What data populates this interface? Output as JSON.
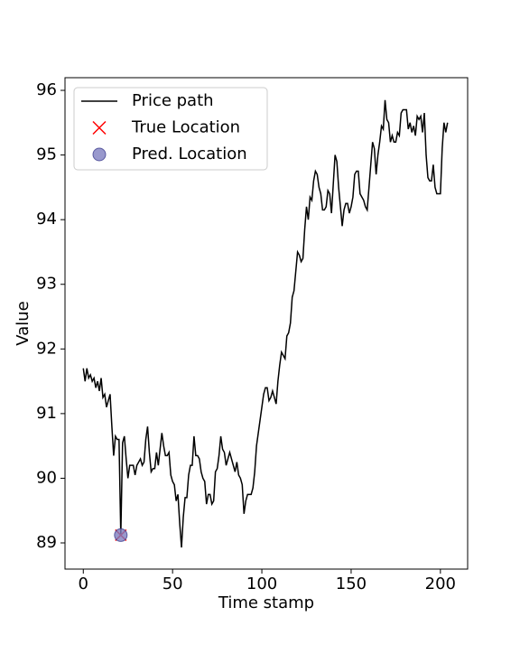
{
  "chart_data": {
    "type": "line",
    "xlabel": "Time stamp",
    "ylabel": "Value",
    "xlim": [
      -10.25,
      215.25
    ],
    "ylim": [
      88.595,
      96.196
    ],
    "xticks": [
      0,
      50,
      100,
      150,
      200
    ],
    "yticks": [
      89,
      90,
      91,
      92,
      93,
      94,
      95,
      96
    ],
    "legend": "upper left",
    "series": [
      {
        "name": "Price path",
        "color": "#000000",
        "marker": "line",
        "x": [
          0,
          1,
          2,
          3,
          4,
          5,
          6,
          7,
          8,
          9,
          10,
          11,
          12,
          13,
          14,
          15,
          16,
          17,
          18,
          19,
          20,
          21,
          22,
          23,
          24,
          25,
          26,
          27,
          28,
          29,
          30,
          31,
          32,
          33,
          34,
          35,
          36,
          37,
          38,
          39,
          40,
          41,
          42,
          43,
          44,
          45,
          46,
          47,
          48,
          49,
          50,
          51,
          52,
          53,
          54,
          55,
          56,
          57,
          58,
          59,
          60,
          61,
          62,
          63,
          64,
          65,
          66,
          67,
          68,
          69,
          70,
          71,
          72,
          73,
          74,
          75,
          76,
          77,
          78,
          79,
          80,
          81,
          82,
          83,
          84,
          85,
          86,
          87,
          88,
          89,
          90,
          91,
          92,
          93,
          94,
          95,
          96,
          97,
          98,
          99,
          100,
          101,
          102,
          103,
          104,
          105,
          106,
          107,
          108,
          109,
          110,
          111,
          112,
          113,
          114,
          115,
          116,
          117,
          118,
          119,
          120,
          121,
          122,
          123,
          124,
          125,
          126,
          127,
          128,
          129,
          130,
          131,
          132,
          133,
          134,
          135,
          136,
          137,
          138,
          139,
          140,
          141,
          142,
          143,
          144,
          145,
          146,
          147,
          148,
          149,
          150,
          151,
          152,
          153,
          154,
          155,
          156,
          157,
          158,
          159,
          160,
          161,
          162,
          163,
          164,
          165,
          166,
          167,
          168,
          169,
          170,
          171,
          172,
          173,
          174,
          175,
          176,
          177,
          178,
          179,
          180,
          181,
          182,
          183,
          184,
          185,
          186,
          187,
          188,
          189,
          190,
          191,
          192,
          193,
          194,
          195,
          196,
          197,
          198,
          199,
          200,
          201,
          202,
          203,
          204
        ],
        "values": [
          91.7,
          91.5,
          91.7,
          91.55,
          91.6,
          91.5,
          91.55,
          91.4,
          91.5,
          91.35,
          91.55,
          91.25,
          91.3,
          91.1,
          91.2,
          91.3,
          90.8,
          90.35,
          90.65,
          90.6,
          90.6,
          89.12,
          90.55,
          90.65,
          90.3,
          90.0,
          90.2,
          90.2,
          90.2,
          90.05,
          90.2,
          90.25,
          90.3,
          90.2,
          90.25,
          90.6,
          90.8,
          90.4,
          90.1,
          90.15,
          90.15,
          90.4,
          90.2,
          90.45,
          90.7,
          90.5,
          90.35,
          90.35,
          90.4,
          90.05,
          89.95,
          89.9,
          89.65,
          89.75,
          89.3,
          88.93,
          89.4,
          89.7,
          89.7,
          90.05,
          90.2,
          90.2,
          90.65,
          90.35,
          90.35,
          90.3,
          90.1,
          90.0,
          89.95,
          89.6,
          89.75,
          89.75,
          89.6,
          89.65,
          90.1,
          90.15,
          90.35,
          90.65,
          90.45,
          90.4,
          90.2,
          90.3,
          90.4,
          90.3,
          90.2,
          90.1,
          90.25,
          90.05,
          90.0,
          89.9,
          89.45,
          89.65,
          89.75,
          89.75,
          89.75,
          89.85,
          90.1,
          90.5,
          90.7,
          90.9,
          91.1,
          91.3,
          91.4,
          91.4,
          91.2,
          91.25,
          91.35,
          91.25,
          91.15,
          91.5,
          91.75,
          91.95,
          91.9,
          91.85,
          92.2,
          92.25,
          92.4,
          92.8,
          92.9,
          93.2,
          93.5,
          93.45,
          93.35,
          93.4,
          93.85,
          94.2,
          94.0,
          94.35,
          94.3,
          94.6,
          94.75,
          94.7,
          94.5,
          94.4,
          94.15,
          94.15,
          94.2,
          94.45,
          94.4,
          94.1,
          94.55,
          95.0,
          94.9,
          94.5,
          94.2,
          93.9,
          94.15,
          94.25,
          94.25,
          94.1,
          94.2,
          94.35,
          94.7,
          94.75,
          94.75,
          94.4,
          94.35,
          94.3,
          94.2,
          94.15,
          94.5,
          94.85,
          95.2,
          95.1,
          94.7,
          95.0,
          95.2,
          95.45,
          95.4,
          95.85,
          95.55,
          95.5,
          95.2,
          95.3,
          95.2,
          95.2,
          95.35,
          95.3,
          95.65,
          95.7,
          95.7,
          95.7,
          95.4,
          95.5,
          95.35,
          95.45,
          95.3,
          95.6,
          95.55,
          95.6,
          95.35,
          95.65,
          95.0,
          94.65,
          94.6,
          94.6,
          94.85,
          94.5,
          94.4,
          94.4,
          94.4,
          95.1,
          95.5,
          95.35,
          95.5
        ]
      },
      {
        "name": "True Location",
        "color": "#ff0000",
        "marker": "x",
        "x": [
          21
        ],
        "values": [
          89.12
        ]
      },
      {
        "name": "Pred. Location",
        "color": "#8080c0",
        "marker": "o",
        "x": [
          21
        ],
        "values": [
          89.12
        ]
      }
    ]
  }
}
